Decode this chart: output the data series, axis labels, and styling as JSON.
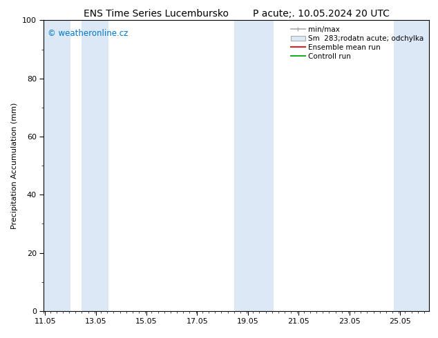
{
  "title": "ENS Time Series Lucembursko        P acute;. 10.05.2024 20 UTC",
  "ylabel": "Precipitation Accumulation (mm)",
  "ylim": [
    0,
    100
  ],
  "yticks": [
    0,
    20,
    40,
    60,
    80,
    100
  ],
  "xlim_start": 11.0,
  "xlim_end": 26.2,
  "xtick_labels": [
    "11.05",
    "13.05",
    "15.05",
    "17.05",
    "19.05",
    "21.05",
    "23.05",
    "25.05"
  ],
  "xtick_positions": [
    11.05,
    13.05,
    15.05,
    17.05,
    19.05,
    21.05,
    23.05,
    25.05
  ],
  "background_color": "#ffffff",
  "plot_bg_color": "#ffffff",
  "shaded_bands": [
    {
      "x_start": 11.0,
      "x_end": 12.05
    },
    {
      "x_start": 12.5,
      "x_end": 13.55
    },
    {
      "x_start": 18.5,
      "x_end": 20.05
    },
    {
      "x_start": 24.8,
      "x_end": 26.2
    }
  ],
  "band_color": "#dce8f5",
  "watermark_text": "© weatheronline.cz",
  "watermark_color": "#0077cc",
  "legend_entries": [
    {
      "label": "min/max",
      "type": "errorbar"
    },
    {
      "label": "Sm  283;rodatn acute; odchylka",
      "type": "band"
    },
    {
      "label": "Ensemble mean run",
      "color": "#dd2222",
      "type": "line"
    },
    {
      "label": "Controll run",
      "color": "#22aa22",
      "type": "line"
    }
  ],
  "title_fontsize": 10,
  "label_fontsize": 8,
  "tick_fontsize": 8,
  "legend_fontsize": 7.5
}
